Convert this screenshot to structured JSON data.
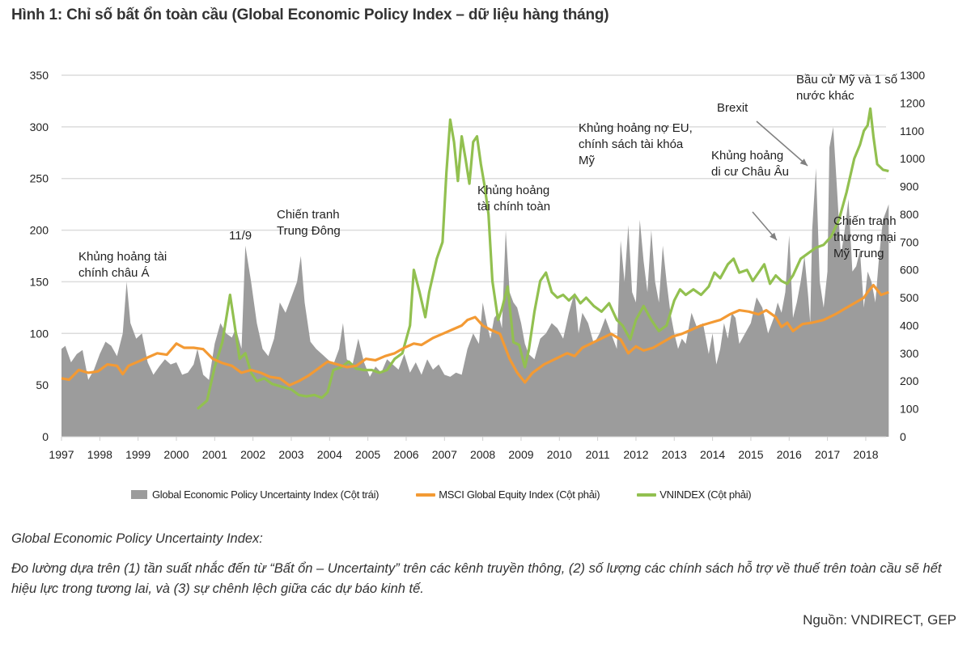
{
  "title": "Hình 1: Chỉ số bất ổn toàn cầu (Global Economic Policy Index – dữ liệu hàng tháng)",
  "colors": {
    "epu": "#9c9c9c",
    "msci": "#f39a34",
    "vnindex": "#92c050",
    "grid": "#dcdcdc",
    "arrow": "#808080"
  },
  "chart_data": {
    "type": "area+line",
    "title": "Hình 1: Chỉ số bất ổn toàn cầu (Global Economic Policy Index – dữ liệu hàng tháng)",
    "xlabel": "",
    "ylabel_left": "",
    "ylabel_right": "",
    "x_range": [
      1997,
      2018.6
    ],
    "x_ticks": [
      "1997",
      "1998",
      "1999",
      "2000",
      "2001",
      "2002",
      "2003",
      "2004",
      "2005",
      "2006",
      "2007",
      "2008",
      "2009",
      "2010",
      "2011",
      "2012",
      "2013",
      "2014",
      "2015",
      "2016",
      "2017",
      "2018"
    ],
    "y_left": {
      "range": [
        0,
        350
      ],
      "ticks": [
        "0",
        "50",
        "100",
        "150",
        "200",
        "250",
        "300",
        "350"
      ]
    },
    "y_right": {
      "range": [
        0,
        1300
      ],
      "ticks": [
        "0",
        "100",
        "200",
        "300",
        "400",
        "500",
        "600",
        "700",
        "800",
        "900",
        "1000",
        "1100",
        "1200",
        "1300"
      ]
    },
    "grid": true,
    "legend_position": "bottom",
    "series": [
      {
        "name": "Global Economic Policy Uncertainty Index (Cột trái)",
        "type": "area",
        "axis": "left",
        "x": [
          1997.0,
          1997.1,
          1997.25,
          1997.4,
          1997.55,
          1997.7,
          1997.85,
          1998.0,
          1998.15,
          1998.3,
          1998.45,
          1998.6,
          1998.7,
          1998.8,
          1998.95,
          1999.1,
          1999.25,
          1999.4,
          1999.55,
          1999.7,
          1999.85,
          2000.0,
          2000.15,
          2000.3,
          2000.45,
          2000.55,
          2000.7,
          2000.85,
          2001.0,
          2001.15,
          2001.3,
          2001.45,
          2001.55,
          2001.7,
          2001.8,
          2001.95,
          2002.1,
          2002.25,
          2002.4,
          2002.55,
          2002.7,
          2002.85,
          2003.0,
          2003.15,
          2003.25,
          2003.35,
          2003.5,
          2003.65,
          2003.8,
          2003.95,
          2004.1,
          2004.25,
          2004.35,
          2004.45,
          2004.6,
          2004.75,
          2004.9,
          2005.05,
          2005.2,
          2005.35,
          2005.5,
          2005.65,
          2005.8,
          2005.95,
          2006.1,
          2006.25,
          2006.4,
          2006.55,
          2006.7,
          2006.85,
          2007.0,
          2007.15,
          2007.3,
          2007.45,
          2007.6,
          2007.75,
          2007.9,
          2008.0,
          2008.1,
          2008.2,
          2008.3,
          2008.4,
          2008.5,
          2008.6,
          2008.7,
          2008.8,
          2008.9,
          2009.0,
          2009.1,
          2009.2,
          2009.35,
          2009.5,
          2009.65,
          2009.8,
          2009.95,
          2010.1,
          2010.25,
          2010.4,
          2010.5,
          2010.6,
          2010.75,
          2010.9,
          2011.05,
          2011.2,
          2011.35,
          2011.5,
          2011.6,
          2011.7,
          2011.8,
          2011.9,
          2012.0,
          2012.1,
          2012.2,
          2012.3,
          2012.4,
          2012.5,
          2012.6,
          2012.7,
          2012.8,
          2012.9,
          2013.0,
          2013.1,
          2013.2,
          2013.3,
          2013.45,
          2013.6,
          2013.75,
          2013.9,
          2014.0,
          2014.1,
          2014.2,
          2014.3,
          2014.4,
          2014.5,
          2014.6,
          2014.7,
          2014.85,
          2015.0,
          2015.15,
          2015.3,
          2015.45,
          2015.6,
          2015.7,
          2015.8,
          2015.9,
          2016.0,
          2016.1,
          2016.2,
          2016.3,
          2016.4,
          2016.5,
          2016.55,
          2016.6,
          2016.7,
          2016.8,
          2016.9,
          2017.0,
          2017.05,
          2017.15,
          2017.25,
          2017.35,
          2017.45,
          2017.55,
          2017.65,
          2017.75,
          2017.85,
          2017.95,
          2018.05,
          2018.15,
          2018.25,
          2018.35,
          2018.45,
          2018.55,
          2018.6
        ],
        "values": [
          85,
          88,
          72,
          80,
          84,
          55,
          65,
          80,
          92,
          88,
          78,
          100,
          150,
          110,
          95,
          100,
          72,
          60,
          68,
          75,
          70,
          72,
          60,
          62,
          70,
          85,
          60,
          55,
          90,
          110,
          100,
          96,
          105,
          85,
          185,
          150,
          110,
          85,
          78,
          95,
          130,
          120,
          135,
          150,
          175,
          130,
          92,
          85,
          80,
          75,
          70,
          85,
          110,
          75,
          70,
          95,
          72,
          58,
          68,
          62,
          75,
          70,
          65,
          80,
          62,
          72,
          60,
          75,
          65,
          70,
          60,
          58,
          62,
          60,
          85,
          100,
          90,
          130,
          110,
          95,
          115,
          120,
          105,
          200,
          140,
          130,
          125,
          110,
          90,
          80,
          75,
          95,
          100,
          110,
          105,
          95,
          120,
          140,
          100,
          120,
          110,
          90,
          100,
          115,
          100,
          85,
          190,
          150,
          205,
          140,
          130,
          210,
          170,
          140,
          200,
          150,
          130,
          185,
          150,
          120,
          100,
          85,
          95,
          90,
          120,
          105,
          110,
          80,
          100,
          70,
          85,
          110,
          95,
          120,
          115,
          90,
          100,
          110,
          135,
          125,
          100,
          115,
          130,
          120,
          140,
          195,
          115,
          130,
          150,
          175,
          135,
          110,
          200,
          260,
          150,
          125,
          160,
          280,
          300,
          240,
          175,
          200,
          230,
          160,
          165,
          180,
          125,
          160,
          150,
          130,
          175,
          210,
          220,
          225
        ]
      },
      {
        "name": "MSCI Global Equity Index (Cột phải)",
        "type": "line",
        "axis": "right",
        "x": [
          1997.0,
          1997.2,
          1997.45,
          1997.7,
          1997.95,
          1998.2,
          1998.45,
          1998.6,
          1998.75,
          1999.0,
          1999.25,
          1999.5,
          1999.75,
          2000.0,
          2000.2,
          2000.45,
          2000.7,
          2000.95,
          2001.2,
          2001.45,
          2001.7,
          2001.95,
          2002.2,
          2002.45,
          2002.7,
          2002.95,
          2003.2,
          2003.45,
          2003.7,
          2003.95,
          2004.2,
          2004.45,
          2004.7,
          2004.95,
          2005.2,
          2005.45,
          2005.7,
          2005.95,
          2006.2,
          2006.4,
          2006.7,
          2006.95,
          2007.2,
          2007.45,
          2007.6,
          2007.8,
          2008.0,
          2008.2,
          2008.45,
          2008.7,
          2008.9,
          2009.1,
          2009.3,
          2009.6,
          2009.9,
          2010.2,
          2010.4,
          2010.6,
          2010.9,
          2011.2,
          2011.35,
          2011.6,
          2011.8,
          2012.0,
          2012.2,
          2012.45,
          2012.7,
          2012.95,
          2013.2,
          2013.45,
          2013.7,
          2013.95,
          2014.2,
          2014.45,
          2014.7,
          2014.95,
          2015.2,
          2015.4,
          2015.65,
          2015.8,
          2015.95,
          2016.1,
          2016.35,
          2016.6,
          2016.9,
          2017.2,
          2017.45,
          2017.7,
          2017.95,
          2018.05,
          2018.2,
          2018.4,
          2018.6
        ],
        "values": [
          210,
          205,
          240,
          230,
          235,
          260,
          255,
          225,
          255,
          270,
          285,
          300,
          295,
          335,
          320,
          320,
          315,
          280,
          265,
          255,
          230,
          240,
          230,
          215,
          210,
          185,
          200,
          220,
          245,
          270,
          260,
          250,
          255,
          280,
          275,
          290,
          300,
          320,
          335,
          330,
          355,
          370,
          385,
          400,
          420,
          430,
          400,
          385,
          370,
          280,
          230,
          195,
          230,
          260,
          280,
          300,
          290,
          320,
          340,
          360,
          370,
          350,
          300,
          325,
          310,
          320,
          340,
          360,
          370,
          385,
          400,
          410,
          420,
          440,
          455,
          450,
          440,
          455,
          430,
          395,
          410,
          380,
          405,
          410,
          420,
          440,
          460,
          480,
          500,
          520,
          545,
          510,
          520
        ]
      },
      {
        "name": "VNINDEX (Cột phải)",
        "type": "line",
        "axis": "right",
        "x": [
          2000.55,
          2000.8,
          2001.0,
          2001.2,
          2001.4,
          2001.5,
          2001.65,
          2001.8,
          2001.95,
          2002.1,
          2002.3,
          2002.5,
          2002.75,
          2003.0,
          2003.2,
          2003.4,
          2003.6,
          2003.8,
          2003.95,
          2004.1,
          2004.3,
          2004.5,
          2004.7,
          2004.9,
          2005.1,
          2005.3,
          2005.5,
          2005.7,
          2005.9,
          2006.1,
          2006.2,
          2006.35,
          2006.5,
          2006.6,
          2006.8,
          2006.95,
          2007.05,
          2007.15,
          2007.25,
          2007.35,
          2007.45,
          2007.55,
          2007.65,
          2007.75,
          2007.85,
          2007.95,
          2008.05,
          2008.15,
          2008.25,
          2008.4,
          2008.5,
          2008.65,
          2008.8,
          2008.95,
          2009.1,
          2009.2,
          2009.35,
          2009.5,
          2009.65,
          2009.8,
          2009.95,
          2010.1,
          2010.25,
          2010.4,
          2010.55,
          2010.7,
          2010.9,
          2011.1,
          2011.3,
          2011.5,
          2011.65,
          2011.85,
          2012.0,
          2012.2,
          2012.4,
          2012.6,
          2012.8,
          2013.0,
          2013.15,
          2013.3,
          2013.5,
          2013.7,
          2013.9,
          2014.05,
          2014.2,
          2014.4,
          2014.55,
          2014.7,
          2014.9,
          2015.05,
          2015.2,
          2015.35,
          2015.5,
          2015.65,
          2015.8,
          2015.95,
          2016.1,
          2016.3,
          2016.5,
          2016.7,
          2016.9,
          2017.1,
          2017.3,
          2017.5,
          2017.7,
          2017.85,
          2017.95,
          2018.05,
          2018.12,
          2018.2,
          2018.3,
          2018.45,
          2018.6
        ],
        "values": [
          100,
          130,
          250,
          340,
          510,
          420,
          280,
          300,
          230,
          200,
          210,
          190,
          180,
          170,
          150,
          145,
          150,
          140,
          160,
          240,
          250,
          270,
          245,
          240,
          240,
          230,
          240,
          280,
          300,
          400,
          600,
          520,
          430,
          520,
          640,
          700,
          950,
          1140,
          1060,
          920,
          1080,
          1000,
          910,
          1060,
          1080,
          980,
          900,
          800,
          560,
          420,
          460,
          540,
          340,
          330,
          250,
          310,
          450,
          560,
          590,
          520,
          500,
          510,
          490,
          510,
          480,
          500,
          470,
          450,
          480,
          420,
          400,
          350,
          420,
          470,
          420,
          380,
          400,
          490,
          530,
          510,
          530,
          510,
          540,
          590,
          570,
          620,
          640,
          590,
          600,
          560,
          590,
          620,
          550,
          580,
          560,
          550,
          580,
          640,
          660,
          680,
          690,
          720,
          780,
          880,
          1000,
          1050,
          1100,
          1120,
          1180,
          1080,
          980,
          960,
          955
        ]
      }
    ],
    "annotations": [
      {
        "text": [
          "Khủng hoảng tài",
          "chính châu Á"
        ]
      },
      {
        "text": [
          "11/9"
        ]
      },
      {
        "text": [
          "Chiến tranh",
          "Trung Đông"
        ]
      },
      {
        "text": [
          "Khủng hoảng",
          "tài chính toàn"
        ]
      },
      {
        "text": [
          "Khủng  hoảng nợ EU,",
          "chính sách tài khóa",
          "Mỹ"
        ]
      },
      {
        "text": [
          "Brexit"
        ]
      },
      {
        "text": [
          "Khủng hoảng",
          "di cư Châu Âu"
        ]
      },
      {
        "text": [
          "Bầu cử Mỹ và 1 số",
          "nước khác"
        ]
      },
      {
        "text": [
          "Chiến tranh",
          "thương mại",
          "Mỹ Trung"
        ]
      }
    ]
  },
  "legend": {
    "epu": "Global Economic Policy Uncertainty Index (Cột trái)",
    "msci": "MSCI Global Equity Index (Cột phải)",
    "vnindex": "VNINDEX (Cột phải)"
  },
  "note": {
    "title": "Global Economic Policy Uncertainty Index:",
    "body": "Đo lường dựa trên (1) tần suất nhắc đến từ “Bất ổn – Uncertainty” trên các kênh truyền thông, (2) số lượng các chính sách hỗ trợ về thuế trên toàn cầu sẽ hết hiệu lực trong tương lai, và (3) sự chênh lệch giữa các dự báo kinh tế."
  },
  "source": "Nguồn: VNDIRECT, GEP"
}
